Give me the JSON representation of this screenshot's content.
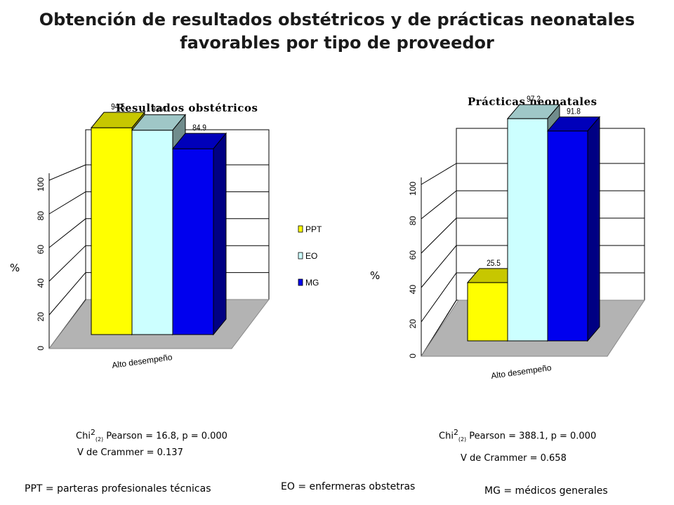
{
  "title_line1": "Obtención  de resultados obstétricos y de prácticas neonatales",
  "title_line2": "favorables por tipo de proveedor",
  "chart_data": [
    {
      "type": "bar",
      "title": "Resultados obstétricos",
      "ylabel": "%",
      "xlabel": "Alto    desempeño",
      "categories": [
        "Alto    desempeño"
      ],
      "ylim": [
        0,
        100
      ],
      "yticks": [
        0,
        20,
        40,
        60,
        80,
        100
      ],
      "series": [
        {
          "name": "PPT",
          "values": [
            94.5
          ],
          "color": "#ffff00"
        },
        {
          "name": "EO",
          "values": [
            93.4
          ],
          "color": "#ccffff"
        },
        {
          "name": "MG",
          "values": [
            84.9
          ],
          "color": "#0000ee"
        }
      ],
      "legend": "right",
      "grid": true
    },
    {
      "type": "bar",
      "title": "Prácticas neonatales",
      "ylabel": "%",
      "xlabel": "Alto    desempeño",
      "categories": [
        "Alto    desempeño"
      ],
      "ylim": [
        0,
        100
      ],
      "yticks": [
        0,
        20,
        40,
        60,
        80,
        100
      ],
      "series": [
        {
          "name": "PPT",
          "values": [
            25.5
          ],
          "color": "#ffff00"
        },
        {
          "name": "EO",
          "values": [
            97.2
          ],
          "color": "#ccffff"
        },
        {
          "name": "MG",
          "values": [
            91.8
          ],
          "color": "#0000ee"
        }
      ],
      "legend": "none",
      "grid": true
    }
  ],
  "stats": {
    "left_chi_prefix": "Chi",
    "left_chi_sup": "2",
    "left_chi_sub": "(2)",
    "left_chi_rest": "  Pearson = 16.8,  p = 0.000",
    "left_v": "V de Crammer = 0.137",
    "right_chi_prefix": "Chi",
    "right_chi_sup": "2",
    "right_chi_sub": "(2)",
    "right_chi_rest": "  Pearson = 388.1,  p = 0.000",
    "right_v": "V de Crammer = 0.658"
  },
  "footer": {
    "ppt": "PPT = parteras profesionales técnicas",
    "eo": "EO  =  enfermeras obstetras",
    "mg": "MG  = médicos generales"
  }
}
